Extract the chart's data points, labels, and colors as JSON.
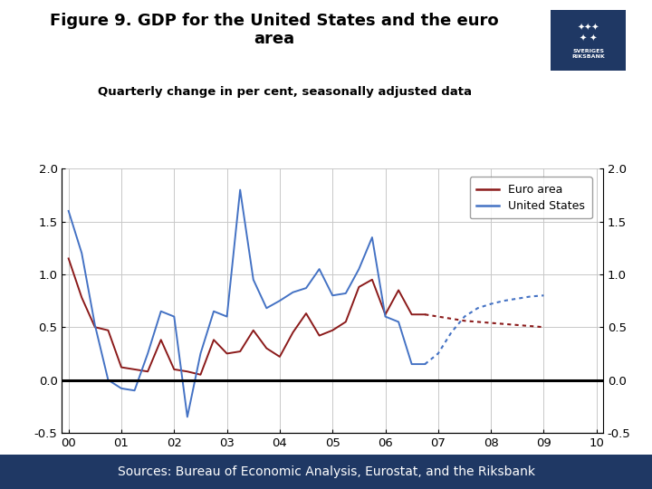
{
  "title": "Figure 9. GDP for the United States and the euro\narea",
  "subtitle": "Quarterly change in per cent, seasonally adjusted data",
  "source": "Sources: Bureau of Economic Analysis, Eurostat, and the Riksbank",
  "euro_color": "#8B1A1A",
  "us_color": "#4472C4",
  "ylim": [
    -0.5,
    2.0
  ],
  "yticks": [
    -0.5,
    0.0,
    0.5,
    1.0,
    1.5,
    2.0
  ],
  "xtick_labels": [
    "00",
    "01",
    "02",
    "03",
    "04",
    "05",
    "06",
    "07",
    "08",
    "09",
    "10"
  ],
  "footer_color": "#1F3864",
  "grid_color": "#C8C8C8",
  "euro_area_solid_x": [
    0,
    1,
    2,
    3,
    4,
    5,
    6,
    7,
    8,
    9,
    10,
    11,
    12,
    13,
    14,
    15,
    16,
    17,
    18,
    19,
    20,
    21,
    22,
    23,
    24,
    25,
    26,
    27
  ],
  "euro_area_solid_y": [
    1.15,
    0.78,
    0.5,
    0.47,
    0.12,
    0.1,
    0.08,
    0.38,
    0.1,
    0.08,
    0.05,
    0.38,
    0.25,
    0.27,
    0.47,
    0.3,
    0.22,
    0.45,
    0.63,
    0.42,
    0.47,
    0.55,
    0.88,
    0.95,
    0.62,
    0.85,
    0.62,
    0.62
  ],
  "euro_area_dotted_x": [
    27,
    28,
    29,
    30,
    31,
    32,
    33,
    34,
    35,
    36
  ],
  "euro_area_dotted_y": [
    0.62,
    0.6,
    0.58,
    0.56,
    0.55,
    0.54,
    0.53,
    0.52,
    0.51,
    0.5
  ],
  "us_solid_x": [
    0,
    1,
    2,
    3,
    4,
    5,
    6,
    7,
    8,
    9,
    10,
    11,
    12,
    13,
    14,
    15,
    16,
    17,
    18,
    19,
    20,
    21,
    22,
    23,
    24,
    25,
    26,
    27
  ],
  "us_solid_y": [
    1.6,
    1.2,
    0.52,
    0.0,
    -0.08,
    -0.1,
    0.25,
    0.65,
    0.6,
    -0.35,
    0.25,
    0.65,
    0.6,
    1.8,
    0.95,
    0.68,
    0.75,
    0.83,
    0.87,
    1.05,
    0.8,
    0.82,
    1.05,
    1.35,
    0.6,
    0.55,
    0.15,
    0.15
  ],
  "us_dotted_x": [
    27,
    28,
    29,
    30,
    31,
    32,
    33,
    34,
    35,
    36
  ],
  "us_dotted_y": [
    0.15,
    0.25,
    0.45,
    0.6,
    0.68,
    0.72,
    0.75,
    0.77,
    0.79,
    0.8
  ]
}
